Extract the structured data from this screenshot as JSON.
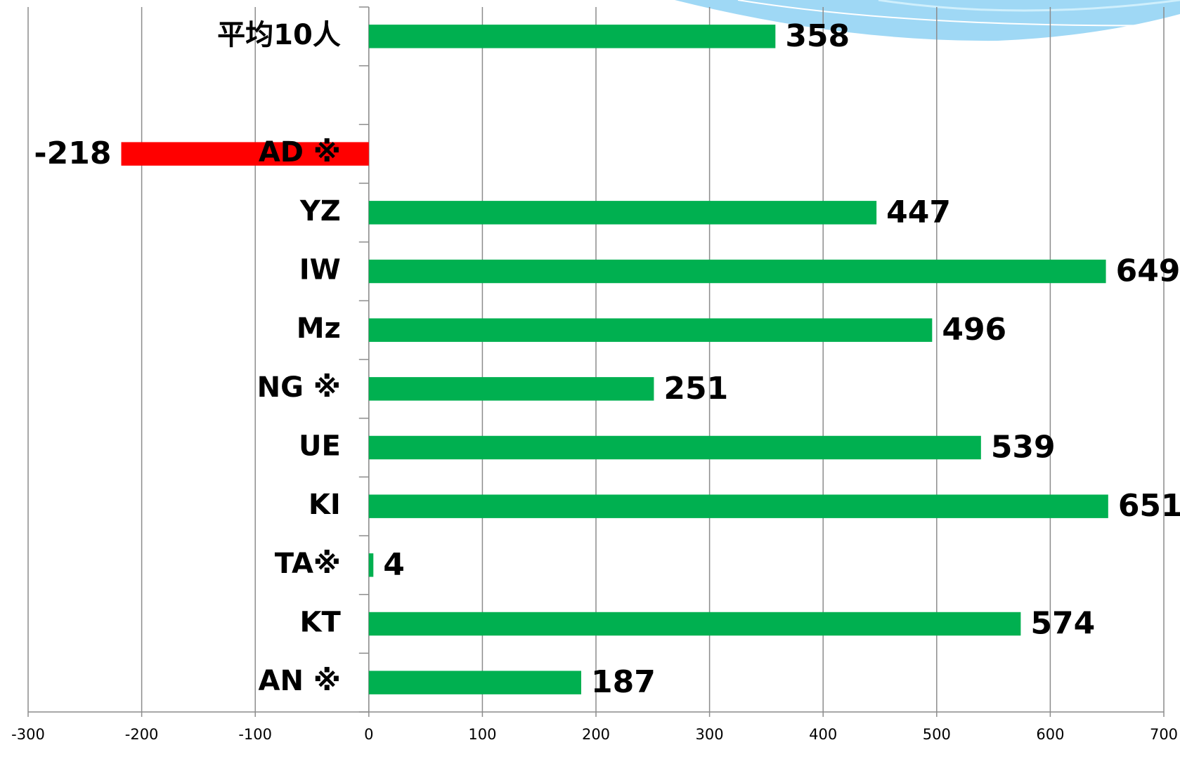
{
  "chart_data": {
    "type": "bar",
    "orientation": "horizontal",
    "categories": [
      "平均10人",
      null,
      "AD ※",
      "YZ",
      "IW",
      "Mz",
      "NG ※",
      "UE",
      "KI",
      "TA※",
      "KT",
      "AN ※"
    ],
    "values": [
      358,
      null,
      -218,
      447,
      649,
      496,
      251,
      539,
      651,
      4,
      574,
      187
    ],
    "color": "#00b050",
    "negative_color": "#ff0000",
    "xlim": [
      -300,
      700
    ],
    "xticks": [
      -300,
      -200,
      -100,
      0,
      100,
      200,
      300,
      400,
      500,
      600,
      700
    ],
    "grid": true
  }
}
